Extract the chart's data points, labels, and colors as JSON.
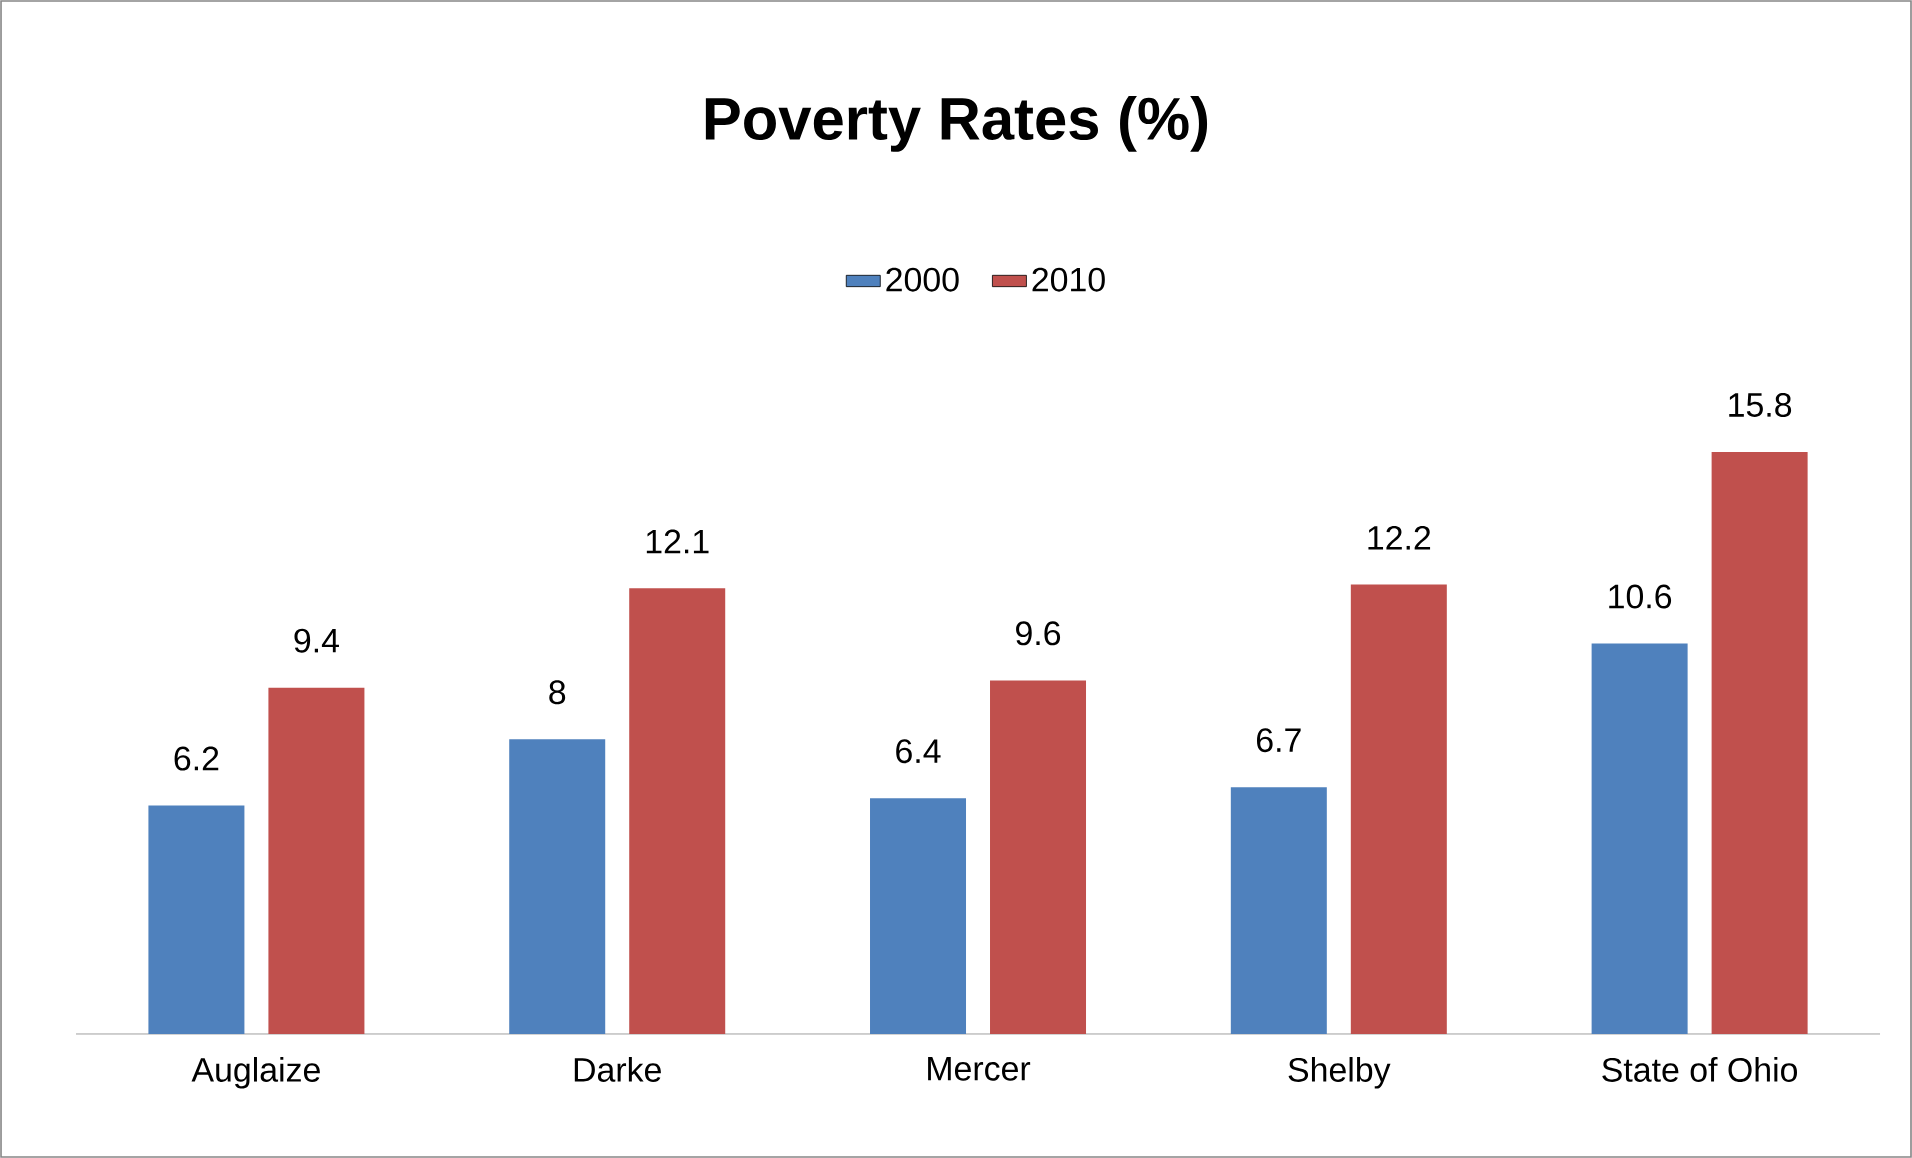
{
  "chart_data": {
    "type": "bar",
    "title": "Poverty Rates (%)",
    "categories": [
      "Auglaize",
      "Darke",
      "Mercer",
      "Shelby",
      "State of Ohio"
    ],
    "series": [
      {
        "name": "2000",
        "color": "#4f81bd",
        "values": [
          6.2,
          8,
          6.4,
          6.7,
          10.6
        ]
      },
      {
        "name": "2010",
        "color": "#c0504d",
        "values": [
          9.4,
          12.1,
          9.6,
          12.2,
          15.8
        ]
      }
    ],
    "data_labels": true,
    "legend": "top"
  }
}
